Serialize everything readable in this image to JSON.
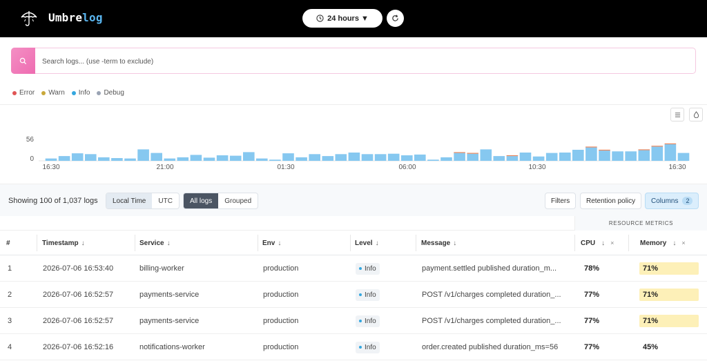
{
  "header": {
    "brand_prefix": "Umbre",
    "brand_suffix": "log",
    "time_range": "24 hours ▼"
  },
  "search": {
    "placeholder": "Search logs... (use -term to exclude)"
  },
  "legend": [
    {
      "label": "Error",
      "color": "#e05555"
    },
    {
      "label": "Warn",
      "color": "#c9a83a"
    },
    {
      "label": "Info",
      "color": "#34a7df"
    },
    {
      "label": "Debug",
      "color": "#9aa4b4"
    }
  ],
  "chart_data": {
    "type": "bar",
    "y_ticks": [
      "56",
      "0"
    ],
    "x_ticks": [
      "16:30",
      "21:00",
      "01:30",
      "06:00",
      "10:30",
      "16:30"
    ],
    "values": [
      6,
      12,
      19,
      17,
      9,
      7,
      6,
      29,
      20,
      6,
      9,
      15,
      8,
      14,
      13,
      22,
      6,
      3,
      19,
      9,
      17,
      12,
      17,
      21,
      17,
      17,
      18,
      14,
      16,
      3,
      9,
      20,
      18,
      29,
      12,
      12,
      21,
      11,
      20,
      21,
      28,
      34,
      26,
      24,
      24,
      27,
      36,
      42,
      20
    ],
    "error_tops": [
      0,
      0,
      0,
      0,
      0,
      0,
      0,
      0,
      0,
      0,
      0,
      0,
      0,
      0,
      0,
      0,
      0,
      0,
      0,
      0,
      0,
      0,
      0,
      0,
      0,
      0,
      0,
      0,
      0,
      0,
      0,
      1,
      1,
      0,
      0,
      1,
      0,
      0,
      0,
      0,
      0,
      1,
      1,
      0,
      0,
      1,
      1,
      1,
      0
    ],
    "ylim": [
      0,
      56
    ]
  },
  "toolbar": {
    "showing": "Showing 100 of 1,037 logs",
    "local_time": "Local Time",
    "utc": "UTC",
    "all_logs": "All logs",
    "grouped": "Grouped",
    "filters": "Filters",
    "retention": "Retention policy",
    "columns": "Columns",
    "columns_count": "2"
  },
  "table": {
    "group_header": "RESOURCE METRICS",
    "headers": {
      "num": "#",
      "timestamp": "Timestamp",
      "service": "Service",
      "env": "Env",
      "level": "Level",
      "message": "Message",
      "cpu": "CPU",
      "memory": "Memory"
    },
    "rows": [
      {
        "num": "1",
        "timestamp": "2026-07-06 16:53:40",
        "service": "billing-worker",
        "env": "production",
        "level": "Info",
        "message": "payment.settled published duration_m...",
        "cpu": "78%",
        "memory": "71%"
      },
      {
        "num": "2",
        "timestamp": "2026-07-06 16:52:57",
        "service": "payments-service",
        "env": "production",
        "level": "Info",
        "message": "POST /v1/charges completed duration_...",
        "cpu": "77%",
        "memory": "71%"
      },
      {
        "num": "3",
        "timestamp": "2026-07-06 16:52:57",
        "service": "payments-service",
        "env": "production",
        "level": "Info",
        "message": "POST /v1/charges completed duration_...",
        "cpu": "77%",
        "memory": "71%"
      },
      {
        "num": "4",
        "timestamp": "2026-07-06 16:52:16",
        "service": "notifications-worker",
        "env": "production",
        "level": "Info",
        "message": "order.created published duration_ms=56",
        "cpu": "77%",
        "memory": "45%"
      }
    ]
  }
}
